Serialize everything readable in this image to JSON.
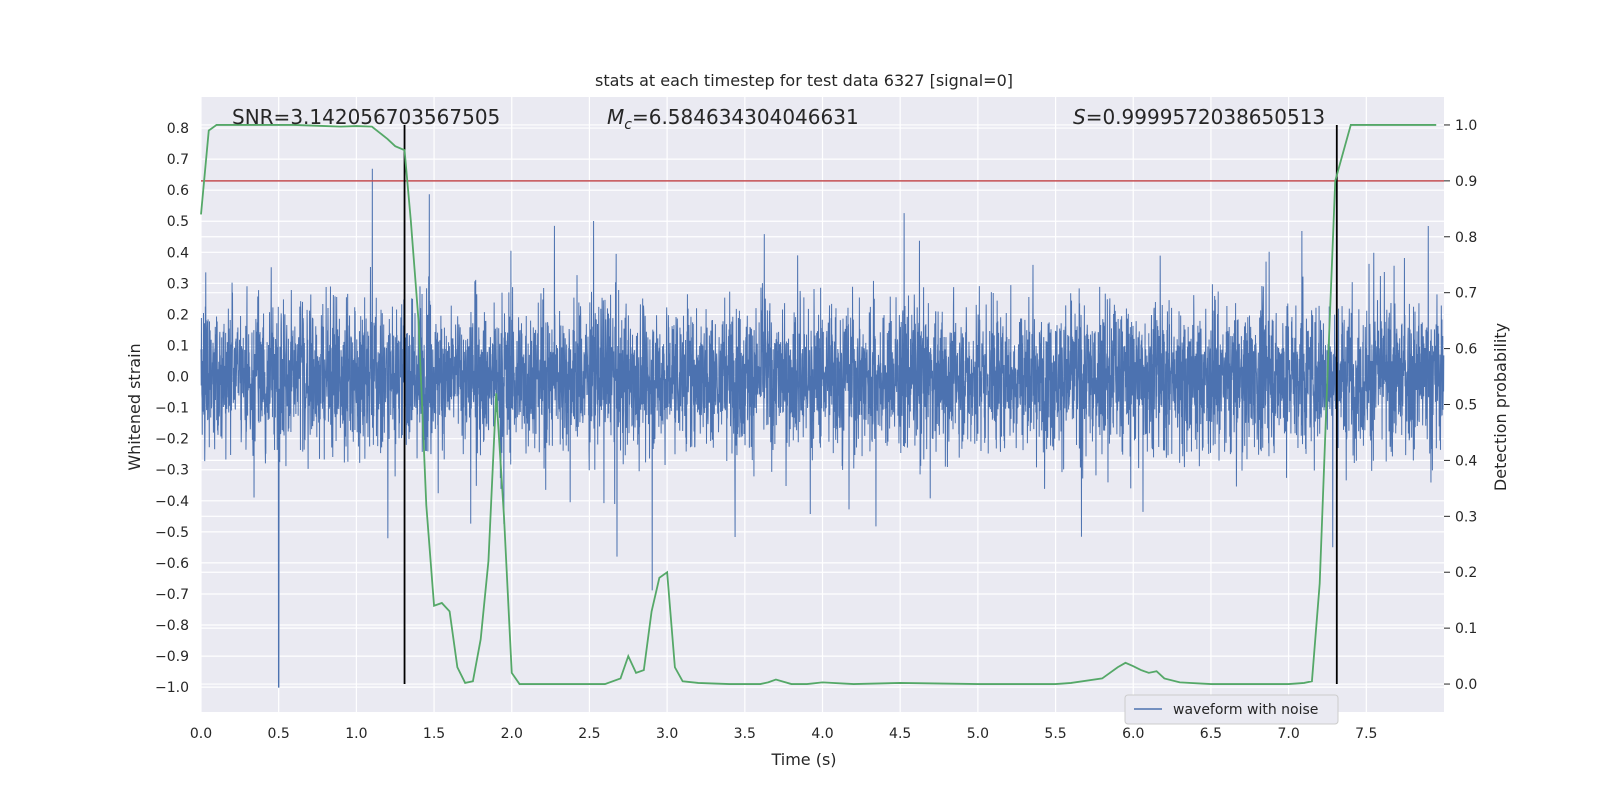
{
  "chart_data": {
    "type": "line",
    "title": "stats at each timestep for test data 6327 [signal=0]",
    "xlabel": "Time (s)",
    "ylabel_left": "Whitened strain",
    "ylabel_right": "Detection probability",
    "xlim": [
      0.0,
      8.0
    ],
    "ylim_left": [
      -1.08,
      0.9
    ],
    "ylim_right": [
      -0.05,
      1.05
    ],
    "xticks": [
      "0.0",
      "0.5",
      "1.0",
      "1.5",
      "2.0",
      "2.5",
      "3.0",
      "3.5",
      "4.0",
      "4.5",
      "5.0",
      "5.5",
      "6.0",
      "6.5",
      "7.0",
      "7.5"
    ],
    "yticks_left": [
      "0.8",
      "0.7",
      "0.6",
      "0.5",
      "0.4",
      "0.3",
      "0.2",
      "0.1",
      "0.0",
      "−0.1",
      "−0.2",
      "−0.3",
      "−0.4",
      "−0.5",
      "−0.6",
      "−0.7",
      "−0.8",
      "−0.9",
      "−1.0"
    ],
    "yticks_right": [
      "1.0",
      "0.9",
      "0.8",
      "0.7",
      "0.6",
      "0.5",
      "0.4",
      "0.3",
      "0.2",
      "0.1",
      "0.0"
    ],
    "grid": true,
    "annotations": {
      "snr_prefix": "SNR=",
      "snr_value": "3.142056703567505",
      "mc_symbol": "M",
      "mc_sub": "c",
      "mc_value": "=6.584634304046631",
      "s_symbol": "S",
      "s_value": "=0.9999572038650513"
    },
    "threshold": {
      "value": 0.9,
      "axis": "right",
      "color": "#c44e52"
    },
    "vlines": [
      1.31,
      7.31
    ],
    "legend": {
      "label": "waveform with noise",
      "position": "lower-right"
    },
    "waveform": {
      "name": "waveform with noise",
      "color": "#4c72b0",
      "duration": 8.0,
      "core_amplitude": 0.27,
      "max": 0.8,
      "min": -1.0,
      "spike_min_at": 0.5
    },
    "detection_probability": {
      "color": "#55a868",
      "x": [
        0.0,
        0.05,
        0.1,
        0.2,
        0.4,
        0.6,
        0.8,
        0.9,
        1.0,
        1.1,
        1.2,
        1.25,
        1.31,
        1.35,
        1.4,
        1.45,
        1.5,
        1.55,
        1.6,
        1.65,
        1.7,
        1.75,
        1.8,
        1.85,
        1.9,
        1.95,
        2.0,
        2.05,
        2.1,
        2.3,
        2.6,
        2.7,
        2.75,
        2.8,
        2.85,
        2.9,
        2.95,
        3.0,
        3.05,
        3.1,
        3.2,
        3.4,
        3.6,
        3.65,
        3.7,
        3.8,
        3.9,
        4.0,
        4.2,
        4.5,
        5.0,
        5.5,
        5.6,
        5.8,
        5.9,
        5.95,
        6.0,
        6.05,
        6.1,
        6.15,
        6.2,
        6.3,
        6.5,
        6.8,
        7.0,
        7.1,
        7.15,
        7.2,
        7.25,
        7.3,
        7.35,
        7.4,
        7.5,
        7.7,
        7.95
      ],
      "y": [
        0.84,
        0.99,
        1.0,
        1.0,
        1.0,
        1.0,
        0.998,
        0.997,
        0.998,
        0.997,
        0.975,
        0.962,
        0.955,
        0.83,
        0.65,
        0.32,
        0.14,
        0.145,
        0.13,
        0.03,
        0.002,
        0.005,
        0.08,
        0.22,
        0.52,
        0.3,
        0.02,
        0.0,
        0.0,
        0.0,
        0.0,
        0.01,
        0.05,
        0.02,
        0.025,
        0.13,
        0.19,
        0.2,
        0.03,
        0.005,
        0.002,
        0.0,
        0.0,
        0.003,
        0.008,
        0.0,
        0.0,
        0.003,
        0.0,
        0.002,
        0.0,
        0.0,
        0.002,
        0.01,
        0.03,
        0.038,
        0.032,
        0.025,
        0.02,
        0.023,
        0.01,
        0.003,
        0.0,
        0.0,
        0.0,
        0.002,
        0.005,
        0.18,
        0.55,
        0.9,
        0.95,
        1.0,
        1.0,
        1.0,
        1.0
      ]
    }
  }
}
